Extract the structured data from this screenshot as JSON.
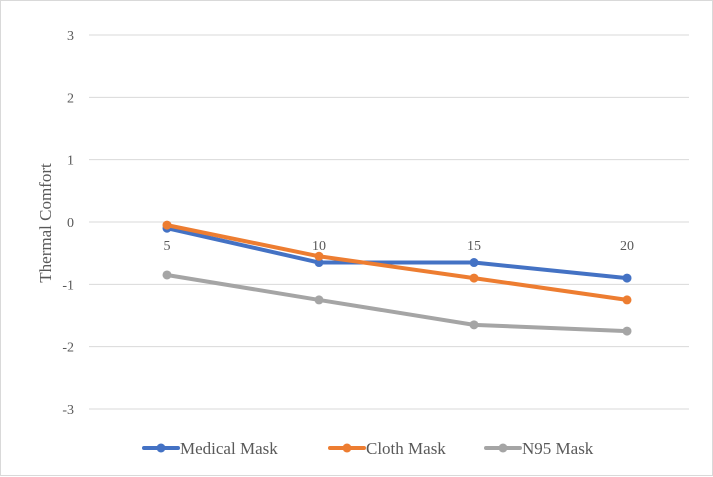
{
  "chart_data": {
    "type": "line",
    "title": "",
    "xlabel": "",
    "ylabel": "Thermal Comfort",
    "x": [
      5,
      10,
      15,
      20
    ],
    "categories": [
      "5",
      "10",
      "15",
      "20"
    ],
    "yticks": [
      "3",
      "2",
      "1",
      "0",
      "-1",
      "-2",
      "-3"
    ],
    "ylim": [
      -3,
      3
    ],
    "grid": true,
    "legend_position": "bottom",
    "series": [
      {
        "name": "Medical Mask",
        "color": "#4472C4",
        "values": [
          -0.1,
          -0.65,
          -0.65,
          -0.9
        ]
      },
      {
        "name": "Cloth Mask",
        "color": "#ED7D31",
        "values": [
          -0.05,
          -0.55,
          -0.9,
          -1.25
        ]
      },
      {
        "name": "N95 Mask",
        "color": "#A5A5A5",
        "values": [
          -0.85,
          -1.25,
          -1.65,
          -1.75
        ]
      }
    ]
  }
}
